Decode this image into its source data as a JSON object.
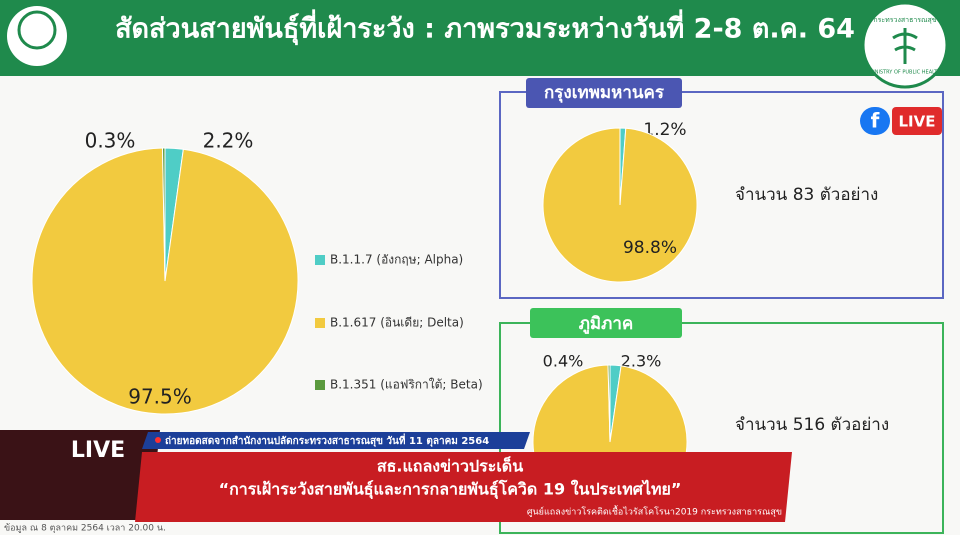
{
  "header": {
    "title": "สัดส่วนสายพันธุ์ที่เฝ้าระวัง : ภาพรวมระหว่างวันที่ 2-8 ต.ค. 64",
    "logo_text": "กระทรวงสาธารณสุข",
    "logo_text_en": "MINISTRY OF PUBLIC HEALTH"
  },
  "chart_data": [
    {
      "type": "pie",
      "categories": [
        "B.1.1.7 (อังกฤษ; Alpha)",
        "B.1.617 (อินเดีย; Delta)",
        "B.1.351 (แอฟริกาใต้; Beta)"
      ],
      "values": [
        2.2,
        97.5,
        0.3
      ],
      "value_labels": [
        "2.2%",
        "97.5%",
        "0.3%"
      ],
      "colors": [
        "#4fcdc6",
        "#f2ca3f",
        "#5b9a3e"
      ],
      "legend": "right"
    },
    {
      "type": "pie",
      "title": "กรุงเทพมหานคร",
      "values": [
        1.2,
        98.8
      ],
      "value_labels": [
        "1.2%",
        "98.8%"
      ],
      "colors": [
        "#4fcdc6",
        "#f2ca3f"
      ],
      "annotation": "จำนวน 83 ตัวอย่าง"
    },
    {
      "type": "pie",
      "title": "ภูมิภาค",
      "values": [
        2.3,
        97.3,
        0.4
      ],
      "value_labels": [
        "2.3%",
        null,
        "0.4%"
      ],
      "colors": [
        "#4fcdc6",
        "#f2ca3f",
        "#5b9a3e"
      ],
      "annotation": "จำนวน 516 ตัวอย่าง"
    }
  ],
  "live_badge": "LIVE",
  "banner": {
    "live": "LIVE",
    "source": "ถ่ายทอดสดจากสำนักงานปลัดกระทรวงสาธารณสุข วันที่ 11 ตุลาคม 2564",
    "line1": "สธ.แถลงข่าวประเด็น",
    "line2": "“การเฝ้าระวังสายพันธุ์และการกลายพันธุ์โควิด 19 ในประเทศไทย”",
    "credit": "ศูนย์แถลงข่าวโรคติดเชื้อไวรัสโคโรนา2019 กระทรวงสาธารณสุข"
  },
  "footnote": "ข้อมูล ณ 8 ตุลาคม 2564 เวลา 20.00 น."
}
